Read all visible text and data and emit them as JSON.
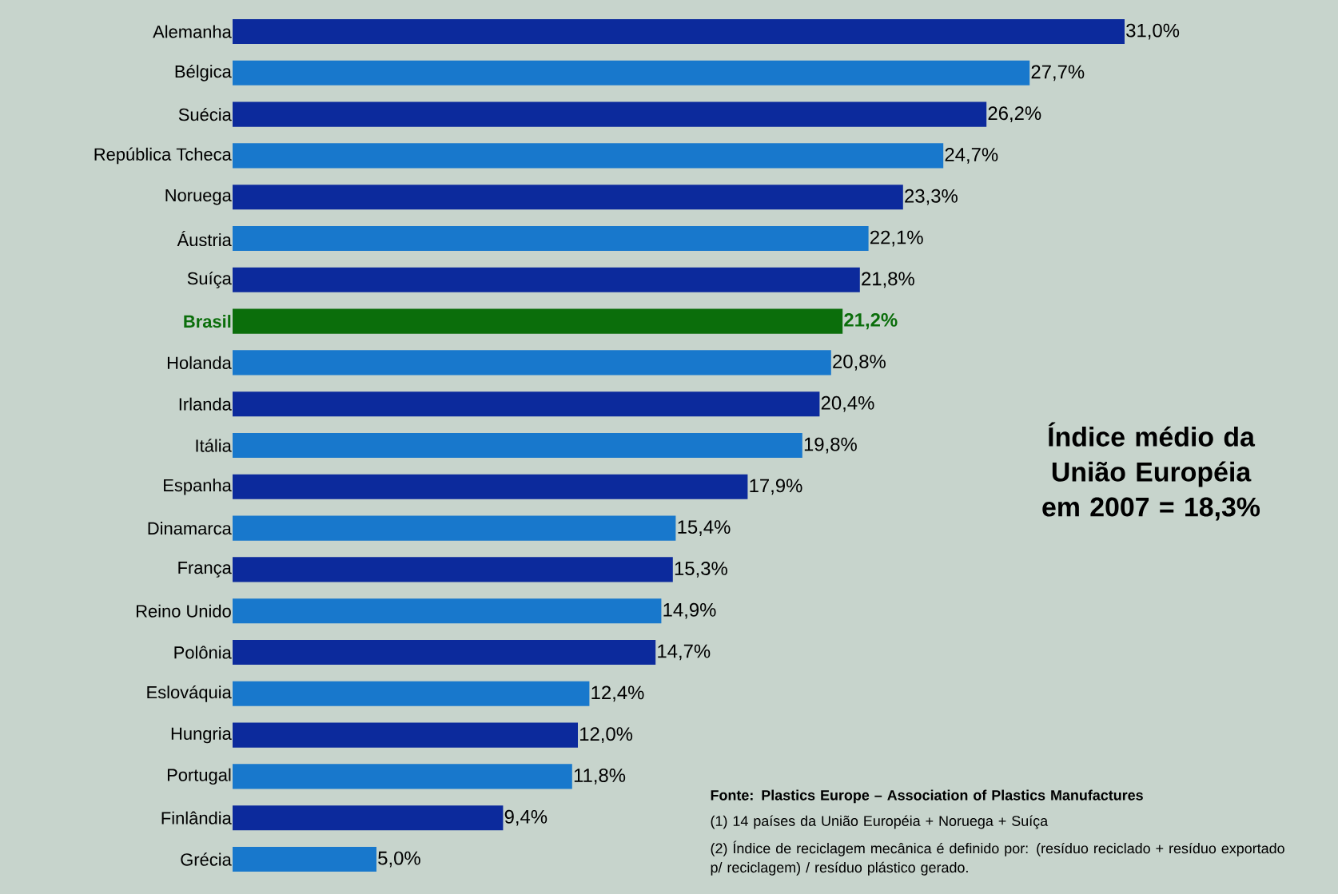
{
  "chart_data": {
    "type": "bar",
    "orientation": "horizontal",
    "categories": [
      "Alemanha",
      "Bélgica",
      "Suécia",
      "República Tcheca",
      "Noruega",
      "Áustria",
      "Suíça",
      "Brasil",
      "Holanda",
      "Irlanda",
      "Itália",
      "Espanha",
      "Dinamarca",
      "França",
      "Reino Unido",
      "Polônia",
      "Eslováquia",
      "Hungria",
      "Portugal",
      "Finlândia",
      "Grécia"
    ],
    "values": [
      31.0,
      27.7,
      26.2,
      24.7,
      23.3,
      22.1,
      21.8,
      21.2,
      20.8,
      20.4,
      19.8,
      17.9,
      15.4,
      15.3,
      14.9,
      14.7,
      12.4,
      12.0,
      11.8,
      9.4,
      5.0
    ],
    "colors": [
      "#0c2a9c",
      "#1878cc",
      "#0c2a9c",
      "#1878cc",
      "#0c2a9c",
      "#1878cc",
      "#0c2a9c",
      "#0b6e0b",
      "#1878cc",
      "#0c2a9c",
      "#1878cc",
      "#0c2a9c",
      "#1878cc",
      "#0c2a9c",
      "#1878cc",
      "#0c2a9c",
      "#1878cc",
      "#0c2a9c",
      "#1878cc",
      "#0c2a9c",
      "#1878cc"
    ],
    "value_labels": [
      "31,0%",
      "27,7%",
      "26,2%",
      "24,7%",
      "23,3%",
      "22,1%",
      "21,8%",
      "21,2%",
      "20,8%",
      "20,4%",
      "19,8%",
      "17,9%",
      "15,4%",
      "15,3%",
      "14,9%",
      "14,7%",
      "12,4%",
      "12,0%",
      "11,8%",
      "9,4%",
      "5,0%"
    ],
    "annotations": [
      "Índice médio da União Européia em 2007 = 18,3%",
      "**Fonte: Plastics Europe – Association of Plastics Manufactures**",
      "(1) 14 países da União Européia + Noruega + Suíça",
      "(2) Índice de reciclagem mecânica é definido por: (resíduo reciclado + resíduo exportado p/ reciclagem) / resíduo plástico gerado."
    ],
    "grid": false
  }
}
